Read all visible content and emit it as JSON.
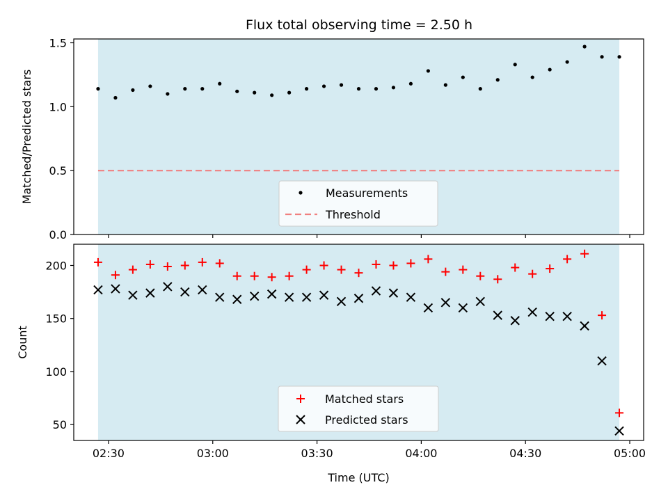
{
  "title": "Flux total observing time = 2.50 h",
  "colors": {
    "shade": "#add8e6",
    "measurement": "#000000",
    "threshold": "#f08080",
    "matched": "#ff0000",
    "predicted": "#000000"
  },
  "chart_data": [
    {
      "type": "scatter",
      "title": "Flux total observing time = 2.50 h",
      "xlabel": "",
      "ylabel": "Matched/Predicted stars",
      "ylim": [
        0,
        1.53
      ],
      "y_ticks": [
        {
          "value": 0.0,
          "label": "0.0"
        },
        {
          "value": 0.5,
          "label": "0.5"
        },
        {
          "value": 1.0,
          "label": "1.0"
        },
        {
          "value": 1.5,
          "label": "1.5"
        }
      ],
      "x_ticks": [
        {
          "value": "02:30",
          "label": ""
        },
        {
          "value": "03:00",
          "label": ""
        },
        {
          "value": "03:30",
          "label": ""
        },
        {
          "value": "04:00",
          "label": ""
        },
        {
          "value": "04:30",
          "label": ""
        },
        {
          "value": "05:00",
          "label": ""
        }
      ],
      "xlim": [
        "02:20",
        "05:04"
      ],
      "shaded_span": [
        "02:27",
        "04:57"
      ],
      "grid": false,
      "legend_position": "lower center",
      "series": [
        {
          "name": "Measurements",
          "x": [
            "02:27",
            "02:32",
            "02:37",
            "02:42",
            "02:47",
            "02:52",
            "02:57",
            "03:02",
            "03:07",
            "03:12",
            "03:17",
            "03:22",
            "03:27",
            "03:32",
            "03:37",
            "03:42",
            "03:47",
            "03:52",
            "03:57",
            "04:02",
            "04:07",
            "04:12",
            "04:17",
            "04:22",
            "04:27",
            "04:32",
            "04:37",
            "04:42",
            "04:47",
            "04:52",
            "04:57"
          ],
          "y": [
            1.14,
            1.07,
            1.13,
            1.16,
            1.1,
            1.14,
            1.14,
            1.18,
            1.12,
            1.11,
            1.09,
            1.11,
            1.14,
            1.16,
            1.17,
            1.14,
            1.14,
            1.15,
            1.18,
            1.28,
            1.17,
            1.23,
            1.14,
            1.21,
            1.33,
            1.23,
            1.29,
            1.35,
            1.47,
            1.39,
            1.39
          ]
        }
      ],
      "threshold": {
        "name": "Threshold",
        "value": 0.5
      }
    },
    {
      "type": "scatter",
      "xlabel": "Time (UTC)",
      "ylabel": "Count",
      "ylim": [
        35,
        220
      ],
      "y_ticks": [
        {
          "value": 50,
          "label": "50"
        },
        {
          "value": 100,
          "label": "100"
        },
        {
          "value": 150,
          "label": "150"
        },
        {
          "value": 200,
          "label": "200"
        }
      ],
      "x_ticks": [
        {
          "value": "02:30",
          "label": "02:30"
        },
        {
          "value": "03:00",
          "label": "03:00"
        },
        {
          "value": "03:30",
          "label": "03:30"
        },
        {
          "value": "04:00",
          "label": "04:00"
        },
        {
          "value": "04:30",
          "label": "04:30"
        },
        {
          "value": "05:00",
          "label": "05:00"
        }
      ],
      "xlim": [
        "02:20",
        "05:04"
      ],
      "shaded_span": [
        "02:27",
        "04:57"
      ],
      "grid": false,
      "legend_position": "lower center",
      "series": [
        {
          "name": "Matched stars",
          "marker": "+",
          "x": [
            "02:27",
            "02:32",
            "02:37",
            "02:42",
            "02:47",
            "02:52",
            "02:57",
            "03:02",
            "03:07",
            "03:12",
            "03:17",
            "03:22",
            "03:27",
            "03:32",
            "03:37",
            "03:42",
            "03:47",
            "03:52",
            "03:57",
            "04:02",
            "04:07",
            "04:12",
            "04:17",
            "04:22",
            "04:27",
            "04:32",
            "04:37",
            "04:42",
            "04:47",
            "04:52",
            "04:57"
          ],
          "y": [
            203,
            191,
            196,
            201,
            199,
            200,
            203,
            202,
            190,
            190,
            189,
            190,
            196,
            200,
            196,
            193,
            201,
            200,
            202,
            206,
            194,
            196,
            190,
            187,
            198,
            192,
            197,
            206,
            211,
            153,
            61
          ]
        },
        {
          "name": "Predicted stars",
          "marker": "x",
          "x": [
            "02:27",
            "02:32",
            "02:37",
            "02:42",
            "02:47",
            "02:52",
            "02:57",
            "03:02",
            "03:07",
            "03:12",
            "03:17",
            "03:22",
            "03:27",
            "03:32",
            "03:37",
            "03:42",
            "03:47",
            "03:52",
            "03:57",
            "04:02",
            "04:07",
            "04:12",
            "04:17",
            "04:22",
            "04:27",
            "04:32",
            "04:37",
            "04:42",
            "04:47",
            "04:52",
            "04:57"
          ],
          "y": [
            177,
            178,
            172,
            174,
            180,
            175,
            177,
            170,
            168,
            171,
            173,
            170,
            170,
            172,
            166,
            169,
            176,
            174,
            170,
            160,
            165,
            160,
            166,
            153,
            148,
            156,
            152,
            152,
            143,
            110,
            44
          ]
        }
      ]
    }
  ]
}
